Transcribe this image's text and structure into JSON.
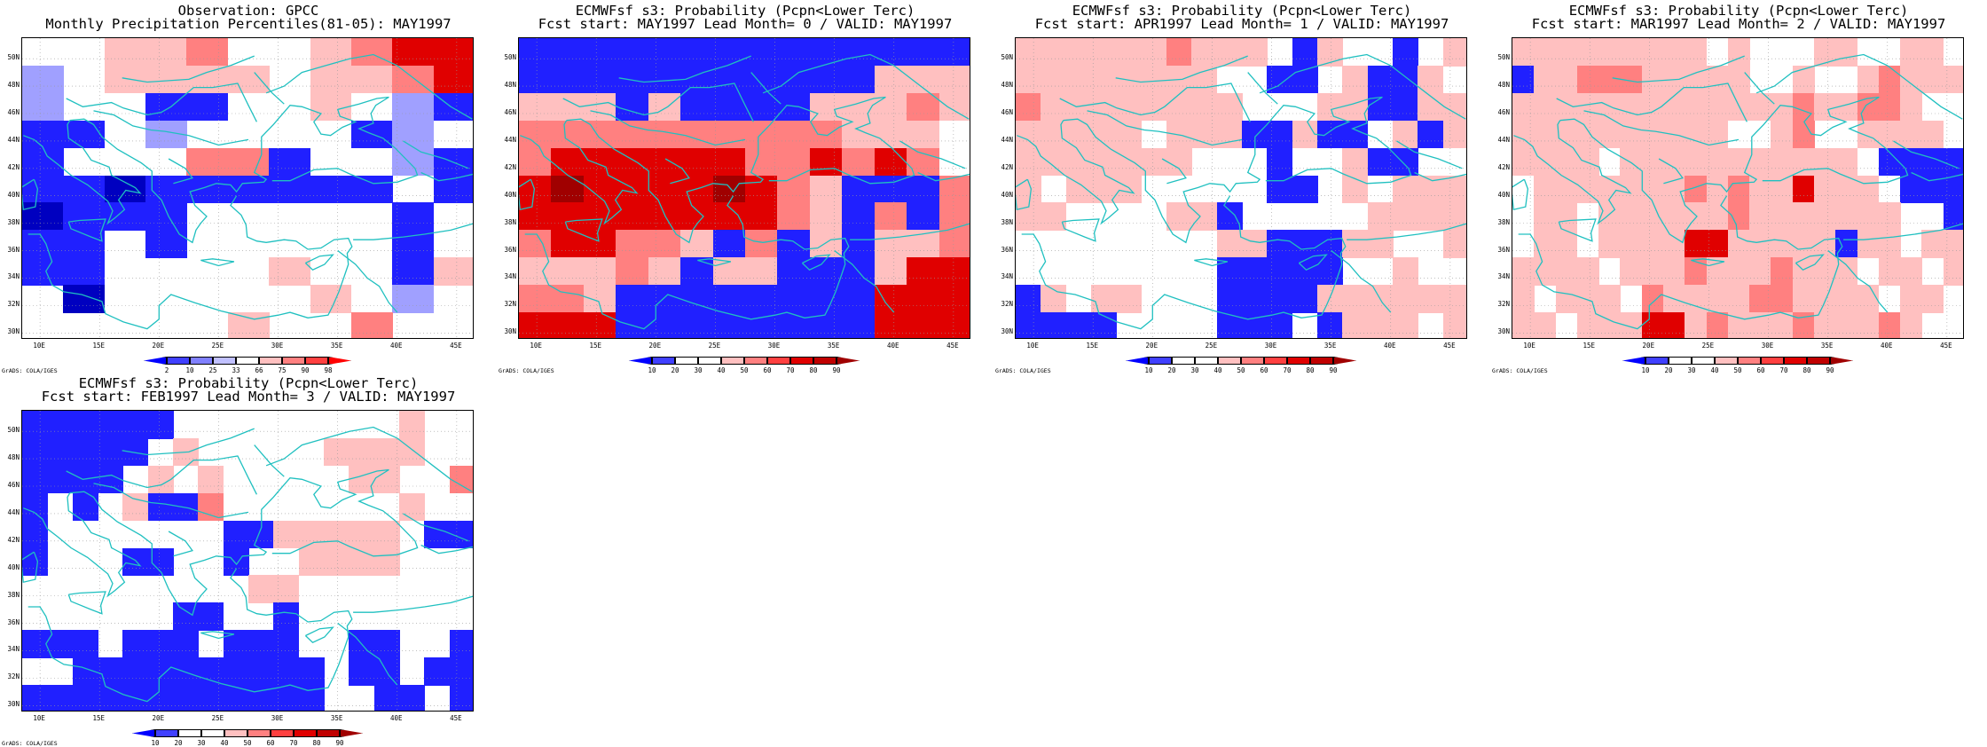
{
  "panels": [
    {
      "id": "obs",
      "title1": "Observation: GPCC",
      "title2": "Monthly Precipitation Percentiles(81-05): MAY1997",
      "cbar_labels": [
        "2",
        "10",
        "25",
        "33",
        "66",
        "75",
        "90",
        "98"
      ],
      "cbar_colors": [
        "#0000ff",
        "#4040ff",
        "#8080ff",
        "#c0c0ff",
        "#ffffff",
        "#ffc0c0",
        "#ff8080",
        "#ff4040",
        "#ff0000"
      ],
      "grid": [
        "..hhk..hkKK",
        "r.hhhh.hhkK",
        "r..bb..h.rb",
        "bb.r....br.",
        "b...kkb..rb",
        "bbBbbbbbb.b",
        "Bbbb.....b.",
        "bb.b.....b.",
        "bb....h..bh",
        ".B.....h.r.",
        ".....h..k.."
      ]
    },
    {
      "id": "lead0",
      "title1": "ECMWFsf s3: Probability (Pcpn<Lower Terc)",
      "title2": "Fcst start: MAY1997  Lead Month= 0 / VALID: MAY1997",
      "cbar_labels": [
        "10",
        "20",
        "30",
        "40",
        "50",
        "60",
        "70",
        "80",
        "90"
      ],
      "cbar_colors": [
        "#0000ff",
        "#4040ff",
        "#ffffff",
        "#ffffff",
        "#ffc0c0",
        "#ff8080",
        "#ff4040",
        "#e00000",
        "#c00000",
        "#a00000"
      ],
      "grid": [
        "bbbbbbbbbbbbbb",
        "bbbbbbbbbbbhhh",
        "hhhbhbbbbhhhkh",
        "kkkkkkkkkkhhh.",
        "kKKKKKKkkKkKk.",
        "KVKKKKVKkhbbbk",
        "KKKKKKKKkhbkbk",
        "kKKkkhbkbhbhhk",
        "hhhkhbhhbbbhKK",
        "kkhbbbbbbbbKKK",
        "KKKbbbbbbbbKKK"
      ]
    },
    {
      "id": "lead1",
      "title1": "ECMWFsf s3: Probability (Pcpn<Lower Terc)",
      "title2": "Fcst start: APR1997  Lead Month= 1 / VALID: MAY1997",
      "cbar_labels": [
        "10",
        "20",
        "30",
        "40",
        "50",
        "60",
        "70",
        "80",
        "90"
      ],
      "cbar_colors": [
        "#0000ff",
        "#4040ff",
        "#ffffff",
        "#ffffff",
        "#ffc0c0",
        "#ff8080",
        "#ff4040",
        "#e00000",
        "#c00000",
        "#a00000"
      ],
      "grid": [
        "hhhhhhkhhh.bh..b.h",
        "hhhhhhhh..bb.hbbh.",
        "khhhhhhhh...hhbbhh",
        "hhhhh.hhhbbhbb.hbh",
        "hhhhhhh...b..hbb..",
        "h.hhh.....bb.h.hhh",
        "hh....hhb.....hhhh",
        "........hhbbbhh..h",
        "........bbbbb..h..",
        "bh.hh...bbbbhhhhhhh",
        "bbbb....bbb.bhhh.h."
      ]
    },
    {
      "id": "lead2",
      "title1": "ECMWFsf s3: Probability (Pcpn<Lower Terc)",
      "title2": "Fcst start: MAR1997  Lead Month= 2 / VALID: MAY1997",
      "cbar_labels": [
        "10",
        "20",
        "30",
        "40",
        "50",
        "60",
        "70",
        "80",
        "90"
      ],
      "cbar_colors": [
        "#0000ff",
        "#4040ff",
        "#ffffff",
        "#ffffff",
        "#ffc0c0",
        "#ff8080",
        "#ff4040",
        "#e00000",
        "#c00000",
        "#a00000"
      ],
      "grid": [
        "hhhhhhhhh.h...hh..hh.",
        "bhhkkkhhhhh..h..hkhhh",
        "hhhhhhhhhhhhhkhhkkh..",
        "hhhhhhhhhh..hk..hhhh.",
        "hhhh.hhhhhhhhhhh.bbbb",
        ".hhhhhhhkhkhhKhhh.bbb",
        ".hh.hhhhhhkhhhhhhh..b",
        ".hh.hhhhKKhhhhhbhh.hh",
        "hhhh.hhhkhhhkhhh.hh.h",
        "h.hhh.khhhhkkhhhh.hh.",
        "hh.hhhKKhkhhhkhhhkh.."
      ]
    },
    {
      "id": "lead3",
      "title1": "ECMWFsf s3: Probability (Pcpn<Lower Terc)",
      "title2": "Fcst start: FEB1997  Lead Month= 3 / VALID: MAY1997",
      "cbar_labels": [
        "10",
        "20",
        "30",
        "40",
        "50",
        "60",
        "70",
        "80",
        "90"
      ],
      "cbar_colors": [
        "#0000ff",
        "#4040ff",
        "#ffffff",
        "#ffffff",
        "#ffc0c0",
        "#ff8080",
        "#ff4040",
        "#e00000",
        "#c00000",
        "#a00000"
      ],
      "grid": [
        "bbbbbb.........h..",
        "bbbbb.h.....hhhh..",
        "bbbb.h.h.....hh..k",
        "b.b.hbbk.......h..",
        "b.......bbhhhhh.bb",
        "b...bb..b..hhhh...",
        ".........hh.......",
        "......bb..b.......",
        "bbb.bbb.bbb..bb..b",
        "..bbbbbbbbbb.bb.bb",
        "bbbbbbbbbbbb..bb.b"
      ]
    }
  ],
  "color_codes": {
    ".": "#ffffff",
    "h": "#ffc0c0",
    "k": "#ff8080",
    "K": "#e00000",
    "V": "#a00000",
    "b": "#2020ff",
    "B": "#0000c0",
    "r": "#a0a0ff"
  },
  "lat_labels": [
    "50N",
    "48N",
    "46N",
    "44N",
    "42N",
    "40N",
    "38N",
    "36N",
    "34N",
    "32N",
    "30N"
  ],
  "lon_labels": [
    "10E",
    "15E",
    "20E",
    "25E",
    "30E",
    "35E",
    "40E",
    "45E"
  ],
  "credit": "GrADS: COLA/IGES",
  "coast_color": "#20c0c0"
}
